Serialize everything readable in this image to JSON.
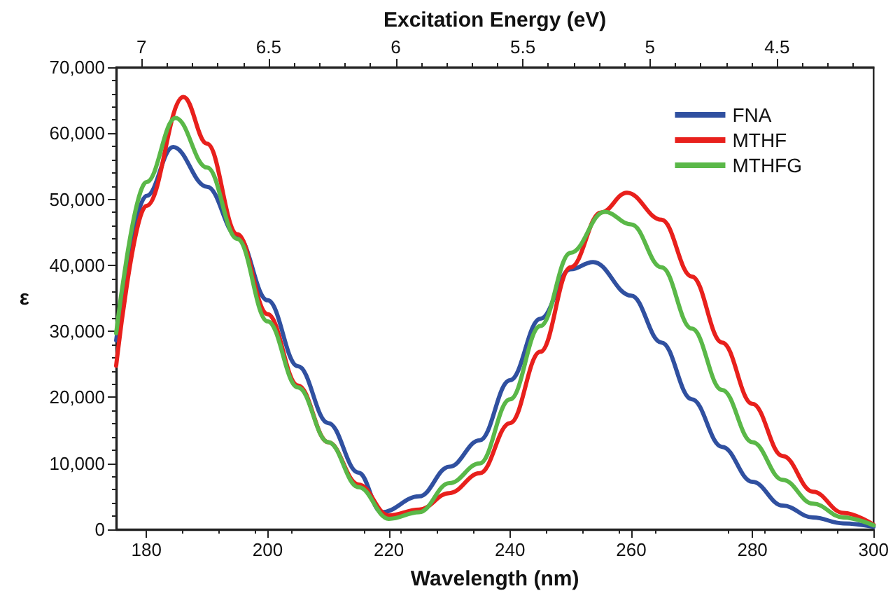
{
  "chart_data": {
    "type": "line",
    "xlabel": "Wavelength (nm)",
    "ylabel": "ε",
    "x2label": "Excitation Energy (eV)",
    "xlim": [
      175,
      300
    ],
    "xticks": [
      180,
      200,
      220,
      240,
      260,
      280,
      300
    ],
    "x2lim": [
      7.1,
      4.12
    ],
    "x2ticks": [
      7,
      6.5,
      6,
      5.5,
      5,
      4.5
    ],
    "ylim": [
      0,
      70000
    ],
    "yticks": [
      {
        "value": 0,
        "label": "0"
      },
      {
        "value": 10000,
        "label": "10,000"
      },
      {
        "value": 20000,
        "label": "20,000"
      },
      {
        "value": 30000,
        "label": "30,000"
      },
      {
        "value": 40000,
        "label": "40,000"
      },
      {
        "value": 50000,
        "label": "50,000"
      },
      {
        "value": 60000,
        "label": "60,000"
      },
      {
        "value": 70000,
        "label": "70,000"
      }
    ],
    "grid": false,
    "legend": "top right",
    "marker": "none",
    "line_style": "solid",
    "series": [
      {
        "name": "FNA",
        "color": "#3050a0",
        "x": [
          175,
          180,
          184.4,
          190,
          195,
          200,
          205,
          210,
          215,
          218.8,
          225,
          230,
          235,
          240,
          245,
          250,
          253.7,
          260,
          265,
          270,
          275,
          280,
          285,
          290,
          295,
          300
        ],
        "values": [
          28600,
          50500,
          57900,
          51900,
          44400,
          34700,
          24700,
          16100,
          8600,
          2600,
          5000,
          9500,
          13500,
          22600,
          31900,
          39400,
          40500,
          35400,
          28300,
          19700,
          12500,
          7200,
          3600,
          1800,
          900,
          400
        ]
      },
      {
        "name": "MTHF",
        "color": "#e8201c",
        "x": [
          175,
          180,
          186.1,
          190,
          195,
          200,
          205,
          210,
          215,
          220,
          225,
          230,
          235,
          240,
          245,
          250,
          255,
          259.3,
          265,
          270,
          275,
          280,
          285,
          290,
          295,
          300
        ],
        "values": [
          24800,
          49000,
          65500,
          58400,
          44700,
          32600,
          21800,
          13200,
          6800,
          2100,
          3000,
          5500,
          8500,
          16100,
          26900,
          39700,
          48000,
          51000,
          46900,
          38300,
          28300,
          19000,
          11100,
          5700,
          2500,
          700
        ]
      },
      {
        "name": "MTHFG",
        "color": "#5ab848",
        "x": [
          175,
          180,
          184.8,
          190,
          195,
          200,
          205,
          210,
          215,
          220,
          225,
          230,
          235,
          240,
          245,
          250,
          255.6,
          260,
          265,
          270,
          275,
          280,
          285,
          290,
          295,
          300
        ],
        "values": [
          29700,
          52600,
          62300,
          54800,
          44000,
          31500,
          21500,
          13200,
          6400,
          1600,
          2600,
          7000,
          10000,
          19700,
          30800,
          41900,
          48100,
          46200,
          39700,
          30400,
          21100,
          13200,
          7500,
          3900,
          1800,
          600
        ]
      }
    ]
  }
}
